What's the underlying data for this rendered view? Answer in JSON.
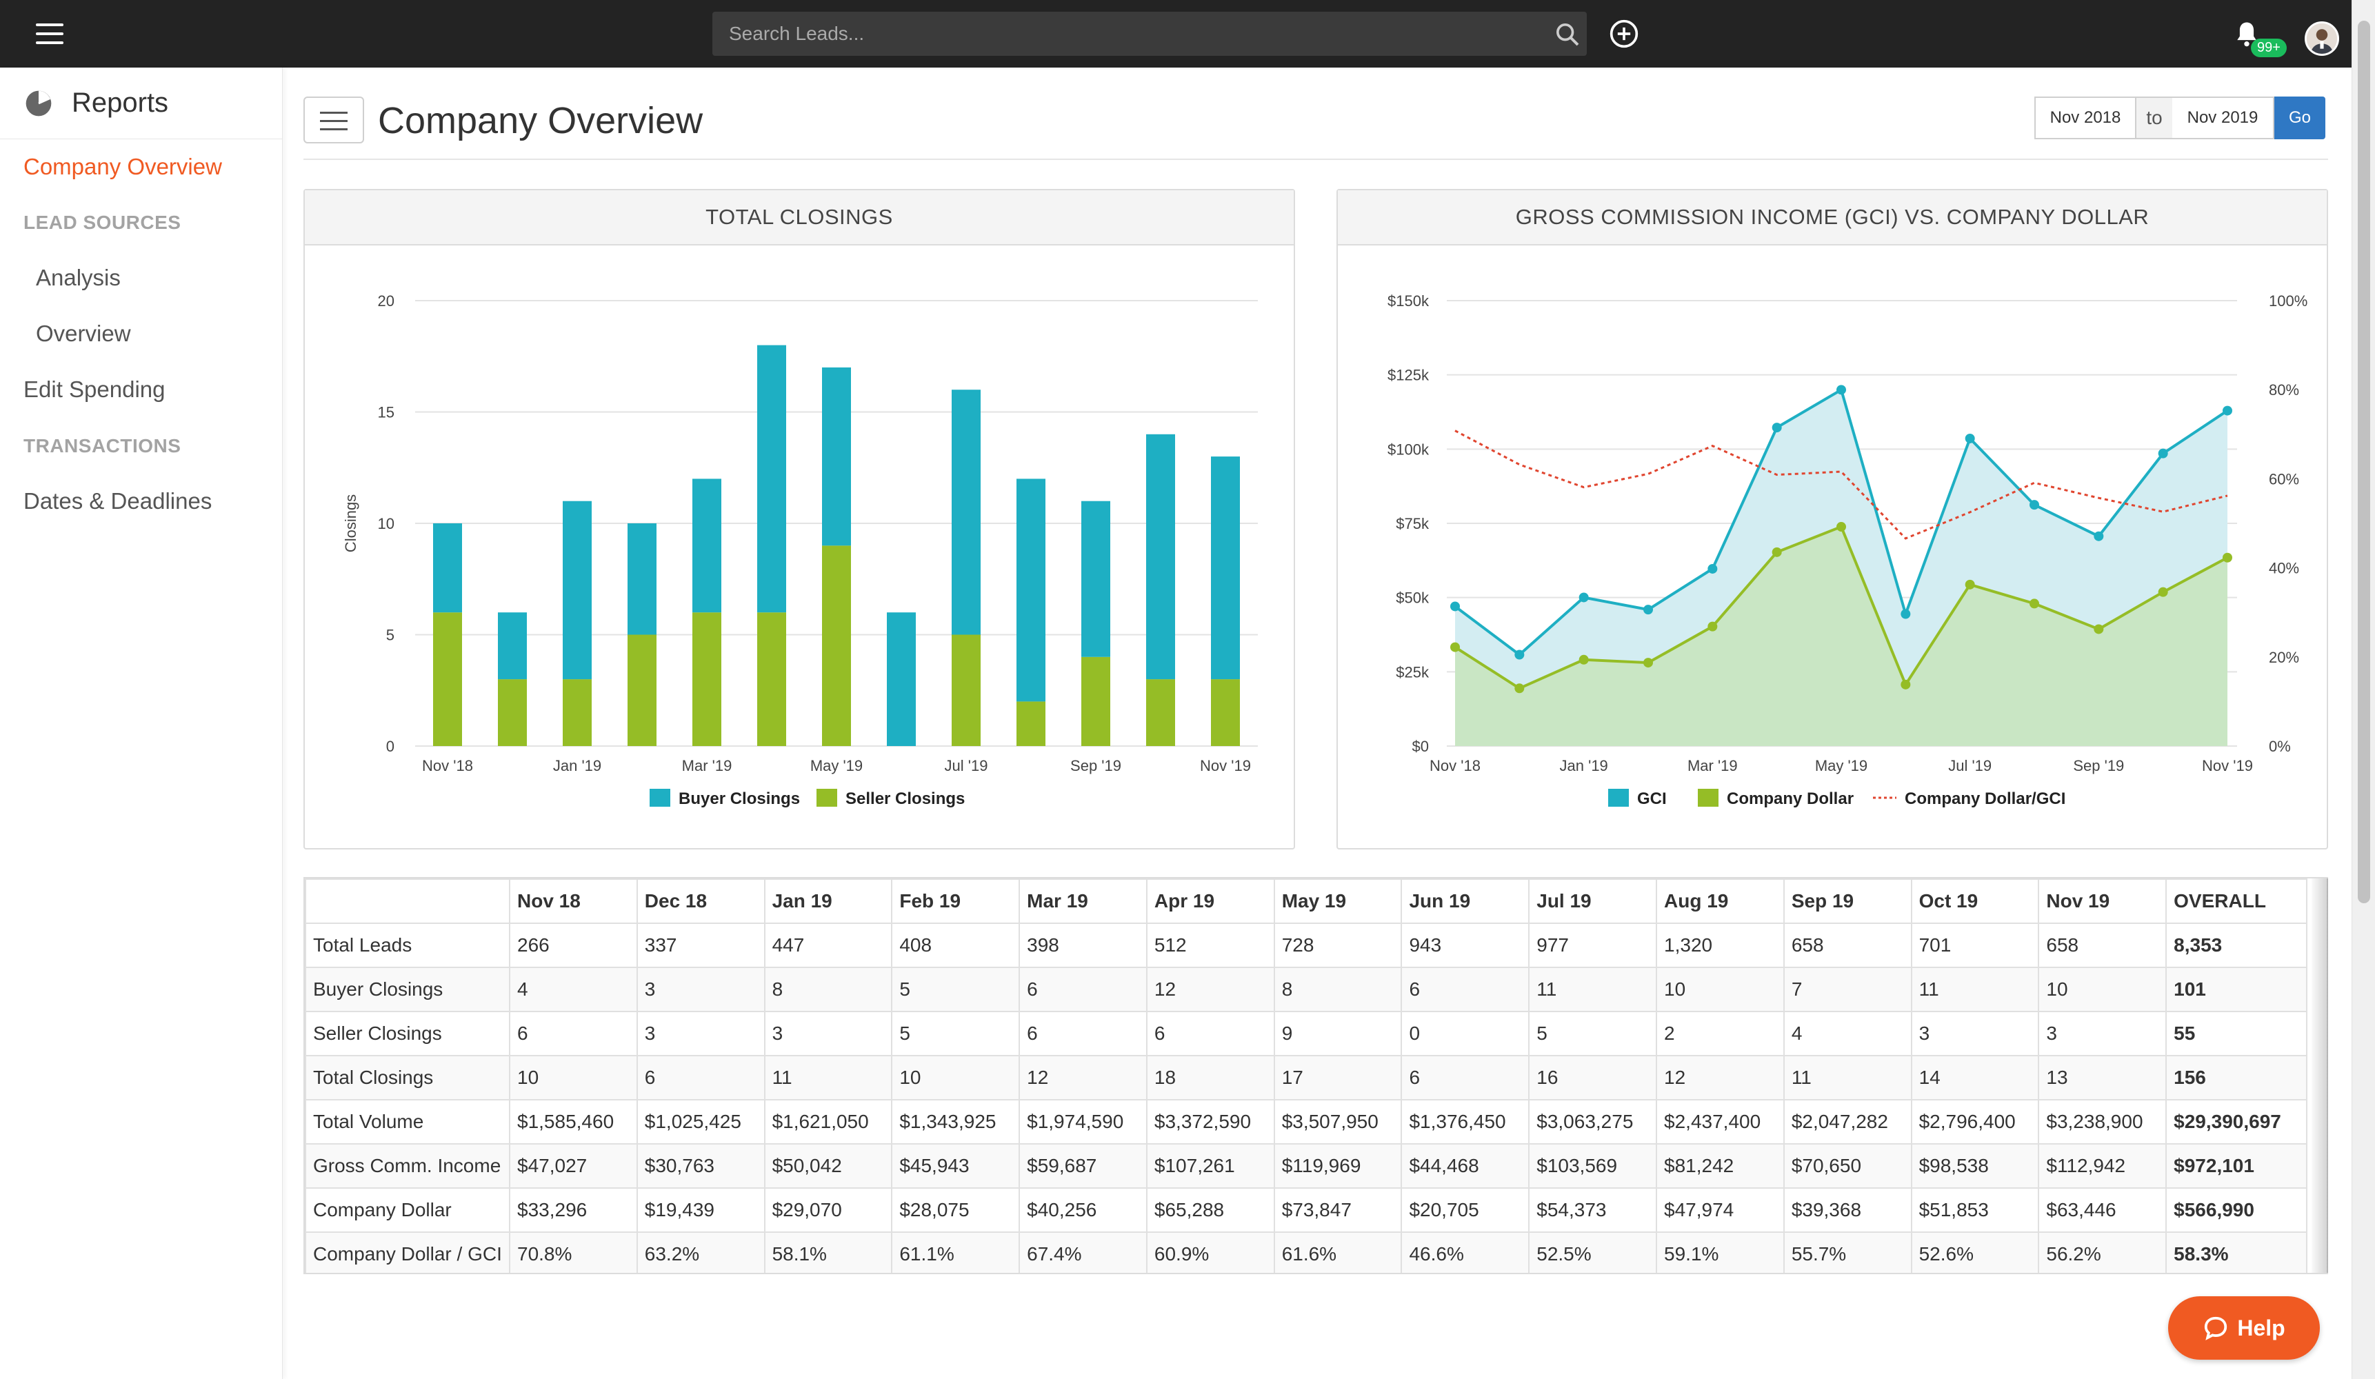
{
  "topbar": {
    "search_placeholder": "Search Leads...",
    "notification_badge": "99+"
  },
  "sidebar": {
    "title": "Reports",
    "active_item": "Company Overview",
    "sections": [
      {
        "label": "LEAD SOURCES"
      },
      {
        "label": "TRANSACTIONS"
      }
    ],
    "items": {
      "analysis": "Analysis",
      "overview": "Overview",
      "edit_spending": "Edit Spending",
      "dates_deadlines": "Dates & Deadlines"
    }
  },
  "header": {
    "page_title": "Company Overview",
    "date_from": "Nov 2018",
    "date_sep": "to",
    "date_to": "Nov 2019",
    "go_label": "Go"
  },
  "charts": {
    "closings_title": "TOTAL CLOSINGS",
    "gci_title": "GROSS COMMISSION INCOME (GCI) VS. COMPANY DOLLAR"
  },
  "chart_data": [
    {
      "type": "bar",
      "stacked": true,
      "title": "TOTAL CLOSINGS",
      "ylabel": "Closings",
      "ylim": [
        0,
        20
      ],
      "yticks": [
        "0",
        "5",
        "10",
        "15",
        "20"
      ],
      "categories": [
        "Nov 18",
        "Dec 18",
        "Jan 19",
        "Feb 19",
        "Mar 19",
        "Apr 19",
        "May 19",
        "Jun 19",
        "Jul 19",
        "Aug 19",
        "Sep 19",
        "Oct 19",
        "Nov 19"
      ],
      "xtick_labels": [
        "Nov '18",
        "Jan '19",
        "Mar '19",
        "May '19",
        "Jul '19",
        "Sep '19",
        "Nov '19"
      ],
      "series": [
        {
          "name": "Seller Closings",
          "color": "#95bd26",
          "values": [
            6,
            3,
            3,
            5,
            6,
            6,
            9,
            0,
            5,
            2,
            4,
            3,
            3
          ]
        },
        {
          "name": "Buyer Closings",
          "color": "#1eafc3",
          "values": [
            4,
            3,
            8,
            5,
            6,
            12,
            8,
            6,
            11,
            10,
            7,
            11,
            10
          ]
        }
      ],
      "legend": "bottom",
      "grid": true
    },
    {
      "type": "line",
      "title": "GROSS COMMISSION INCOME (GCI) VS. COMPANY DOLLAR",
      "ylim": [
        0,
        150000
      ],
      "yticks": [
        "$0",
        "$25k",
        "$50k",
        "$75k",
        "$100k",
        "$125k",
        "$150k"
      ],
      "y2lim": [
        0,
        100
      ],
      "y2ticks": [
        "0%",
        "20%",
        "40%",
        "60%",
        "80%",
        "100%"
      ],
      "categories": [
        "Nov 18",
        "Dec 18",
        "Jan 19",
        "Feb 19",
        "Mar 19",
        "Apr 19",
        "May 19",
        "Jun 19",
        "Jul 19",
        "Aug 19",
        "Sep 19",
        "Oct 19",
        "Nov 19"
      ],
      "xtick_labels": [
        "Nov '18",
        "Jan '19",
        "Mar '19",
        "May '19",
        "Jul '19",
        "Sep '19",
        "Nov '19"
      ],
      "series": [
        {
          "name": "GCI",
          "color": "#1eafc3",
          "fill": "#d3edf2",
          "axis": "left",
          "values": [
            47027,
            30763,
            50042,
            45943,
            59687,
            107261,
            119969,
            44468,
            103569,
            81242,
            70650,
            98538,
            112942
          ]
        },
        {
          "name": "Company Dollar",
          "color": "#95bd26",
          "fill": "#c9e6c4",
          "axis": "left",
          "values": [
            33296,
            19439,
            29070,
            28075,
            40256,
            65288,
            73847,
            20705,
            54373,
            47974,
            39368,
            51853,
            63446
          ]
        },
        {
          "name": "Company Dollar/GCI",
          "color": "#e0452f",
          "dashed": true,
          "axis": "right",
          "values": [
            70.8,
            63.2,
            58.1,
            61.1,
            67.4,
            60.9,
            61.6,
            46.6,
            52.5,
            59.1,
            55.7,
            52.6,
            56.2
          ]
        }
      ],
      "legend": "bottom",
      "grid": true
    }
  ],
  "table": {
    "headers": [
      "",
      "Nov 18",
      "Dec 18",
      "Jan 19",
      "Feb 19",
      "Mar 19",
      "Apr 19",
      "May 19",
      "Jun 19",
      "Jul 19",
      "Aug 19",
      "Sep 19",
      "Oct 19",
      "Nov 19",
      "OVERALL"
    ],
    "rows": [
      [
        "Total Leads",
        "266",
        "337",
        "447",
        "408",
        "398",
        "512",
        "728",
        "943",
        "977",
        "1,320",
        "658",
        "701",
        "658",
        "8,353"
      ],
      [
        "Buyer Closings",
        "4",
        "3",
        "8",
        "5",
        "6",
        "12",
        "8",
        "6",
        "11",
        "10",
        "7",
        "11",
        "10",
        "101"
      ],
      [
        "Seller Closings",
        "6",
        "3",
        "3",
        "5",
        "6",
        "6",
        "9",
        "0",
        "5",
        "2",
        "4",
        "3",
        "3",
        "55"
      ],
      [
        "Total Closings",
        "10",
        "6",
        "11",
        "10",
        "12",
        "18",
        "17",
        "6",
        "16",
        "12",
        "11",
        "14",
        "13",
        "156"
      ],
      [
        "Total Volume",
        "$1,585,460",
        "$1,025,425",
        "$1,621,050",
        "$1,343,925",
        "$1,974,590",
        "$3,372,590",
        "$3,507,950",
        "$1,376,450",
        "$3,063,275",
        "$2,437,400",
        "$2,047,282",
        "$2,796,400",
        "$3,238,900",
        "$29,390,697"
      ],
      [
        "Gross Comm. Income",
        "$47,027",
        "$30,763",
        "$50,042",
        "$45,943",
        "$59,687",
        "$107,261",
        "$119,969",
        "$44,468",
        "$103,569",
        "$81,242",
        "$70,650",
        "$98,538",
        "$112,942",
        "$972,101"
      ],
      [
        "Company Dollar",
        "$33,296",
        "$19,439",
        "$29,070",
        "$28,075",
        "$40,256",
        "$65,288",
        "$73,847",
        "$20,705",
        "$54,373",
        "$47,974",
        "$39,368",
        "$51,853",
        "$63,446",
        "$566,990"
      ],
      [
        "Company Dollar / GCI",
        "70.8%",
        "63.2%",
        "58.1%",
        "61.1%",
        "67.4%",
        "60.9%",
        "61.6%",
        "46.6%",
        "52.5%",
        "59.1%",
        "55.7%",
        "52.6%",
        "56.2%",
        "58.3%"
      ]
    ]
  },
  "help": {
    "label": "Help"
  },
  "icons": {
    "menu": "hamburger-icon",
    "search": "search-icon",
    "add": "plus-circle-icon",
    "notifications": "bell-icon",
    "reports": "pie-chart-icon",
    "help": "chat-bubble-icon"
  }
}
